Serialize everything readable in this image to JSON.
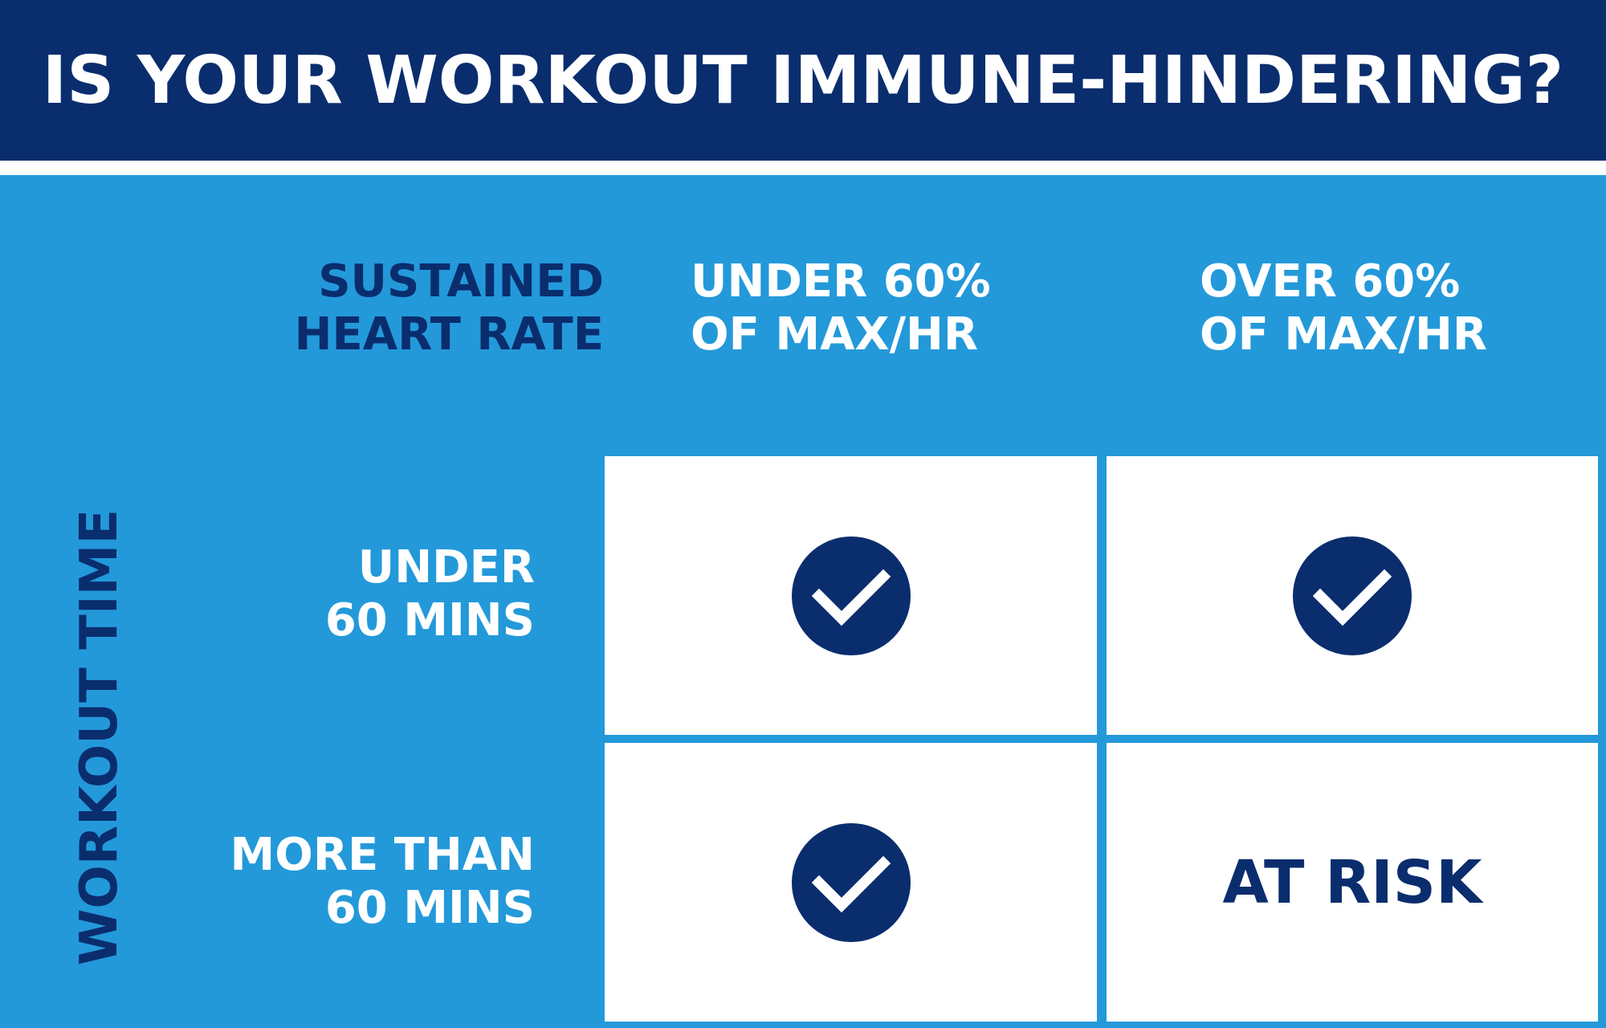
{
  "title": "IS YOUR WORKOUT IMMUNE-HINDERING?",
  "column_axis_label": [
    "SUSTAINED",
    "HEART RATE"
  ],
  "row_axis_label": "WORKOUT TIME",
  "columns": [
    {
      "lines": [
        "UNDER 60%",
        "OF MAX/HR"
      ]
    },
    {
      "lines": [
        "OVER 60%",
        "OF MAX/HR"
      ]
    }
  ],
  "rows": [
    {
      "lines": [
        "UNDER",
        "60 MINS"
      ]
    },
    {
      "lines": [
        "MORE THAN",
        "60 MINS"
      ]
    }
  ],
  "cells": [
    [
      {
        "type": "check",
        "icon": "check-circle-icon"
      },
      {
        "type": "check",
        "icon": "check-circle-icon"
      }
    ],
    [
      {
        "type": "check",
        "icon": "check-circle-icon"
      },
      {
        "type": "text",
        "text": "AT RISK"
      }
    ]
  ],
  "colors": {
    "navy": "#0a2d6e",
    "blue": "#2399da",
    "white": "#ffffff"
  }
}
